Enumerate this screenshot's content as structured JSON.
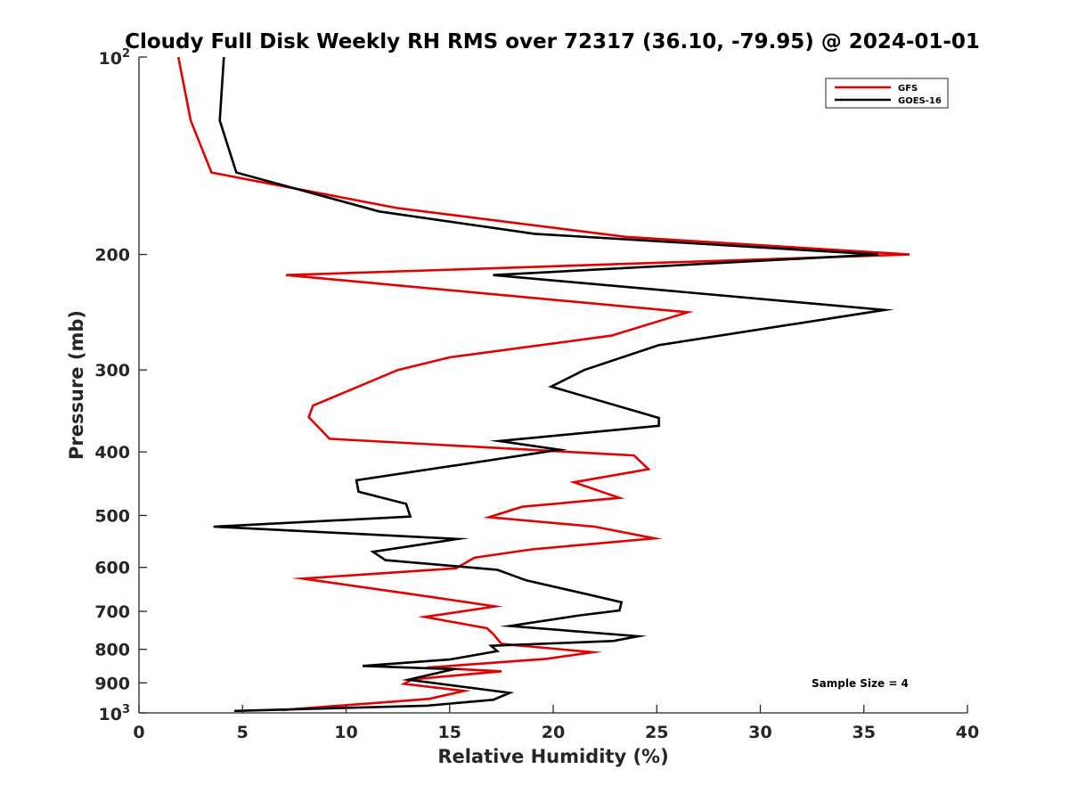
{
  "chart_data": {
    "type": "line",
    "title": "Cloudy Full Disk Weekly RH RMS over 72317 (36.10, -79.95) @ 2024-01-01",
    "xlabel": "Relative Humidity (%)",
    "ylabel": "Pressure (mb)",
    "xlim": [
      0,
      40
    ],
    "ylim": [
      100,
      1000
    ],
    "y_scale": "log",
    "y_reversed": true,
    "x_ticks": [
      {
        "value": 0,
        "label": "0"
      },
      {
        "value": 5,
        "label": "5"
      },
      {
        "value": 10,
        "label": "10"
      },
      {
        "value": 15,
        "label": "15"
      },
      {
        "value": 20,
        "label": "20"
      },
      {
        "value": 25,
        "label": "25"
      },
      {
        "value": 30,
        "label": "30"
      },
      {
        "value": 35,
        "label": "35"
      },
      {
        "value": 40,
        "label": "40"
      }
    ],
    "y_ticks": [
      {
        "value": 100,
        "base": "10",
        "exp": "2"
      },
      {
        "value": 200,
        "label": "200"
      },
      {
        "value": 300,
        "label": "300"
      },
      {
        "value": 400,
        "label": "400"
      },
      {
        "value": 500,
        "label": "500"
      },
      {
        "value": 600,
        "label": "600"
      },
      {
        "value": 700,
        "label": "700"
      },
      {
        "value": 800,
        "label": "800"
      },
      {
        "value": 900,
        "label": "900"
      },
      {
        "value": 1000,
        "base": "10",
        "exp": "3"
      }
    ],
    "grid": false,
    "legend_position": "top-right",
    "annotation": "Sample Size = 4",
    "series": [
      {
        "name": "GFS",
        "color": "#e00000",
        "points": [
          [
            1.9,
            100
          ],
          [
            2.5,
            125
          ],
          [
            3.5,
            150
          ],
          [
            12.5,
            170
          ],
          [
            23.5,
            188
          ],
          [
            37.2,
            200
          ],
          [
            7.1,
            215
          ],
          [
            26.5,
            245
          ],
          [
            22.8,
            266
          ],
          [
            15.0,
            287
          ],
          [
            12.5,
            300
          ],
          [
            8.4,
            340
          ],
          [
            8.2,
            354
          ],
          [
            9.2,
            382
          ],
          [
            23.9,
            405
          ],
          [
            24.6,
            425
          ],
          [
            21.0,
            445
          ],
          [
            23.2,
            470
          ],
          [
            18.5,
            485
          ],
          [
            16.9,
            503
          ],
          [
            22.0,
            520
          ],
          [
            24.9,
            542
          ],
          [
            19.0,
            563
          ],
          [
            16.2,
            580
          ],
          [
            15.3,
            602
          ],
          [
            7.9,
            624
          ],
          [
            13.3,
            660
          ],
          [
            17.2,
            688
          ],
          [
            13.8,
            714
          ],
          [
            16.8,
            743
          ],
          [
            17.1,
            758
          ],
          [
            17.5,
            785
          ],
          [
            21.9,
            808
          ],
          [
            19.7,
            827
          ],
          [
            13.9,
            853
          ],
          [
            17.5,
            864
          ],
          [
            13.2,
            889
          ],
          [
            12.8,
            903
          ],
          [
            15.7,
            926
          ],
          [
            14.0,
            952
          ],
          [
            6.9,
            990
          ]
        ]
      },
      {
        "name": "GOES-16",
        "color": "#000000",
        "points": [
          [
            4.1,
            100
          ],
          [
            3.9,
            125
          ],
          [
            4.7,
            150
          ],
          [
            11.6,
            172
          ],
          [
            19.1,
            186
          ],
          [
            35.7,
            200
          ],
          [
            17.1,
            215
          ],
          [
            36.0,
            243
          ],
          [
            25.1,
            275
          ],
          [
            21.5,
            300
          ],
          [
            19.9,
            318
          ],
          [
            25.1,
            355
          ],
          [
            25.1,
            365
          ],
          [
            17.4,
            385
          ],
          [
            20.3,
            397
          ],
          [
            10.5,
            442
          ],
          [
            10.6,
            460
          ],
          [
            12.9,
            480
          ],
          [
            13.1,
            502
          ],
          [
            3.6,
            520
          ],
          [
            15.4,
            543
          ],
          [
            11.3,
            568
          ],
          [
            11.9,
            585
          ],
          [
            17.3,
            605
          ],
          [
            18.7,
            628
          ],
          [
            21.7,
            660
          ],
          [
            23.3,
            678
          ],
          [
            23.2,
            698
          ],
          [
            21.3,
            710
          ],
          [
            17.9,
            737
          ],
          [
            24.1,
            764
          ],
          [
            22.9,
            777
          ],
          [
            17.0,
            790
          ],
          [
            17.3,
            805
          ],
          [
            15.0,
            829
          ],
          [
            10.8,
            848
          ],
          [
            15.2,
            858
          ],
          [
            13.0,
            890
          ],
          [
            17.9,
            932
          ],
          [
            17.1,
            955
          ],
          [
            13.9,
            975
          ],
          [
            4.6,
            993
          ]
        ]
      }
    ]
  }
}
